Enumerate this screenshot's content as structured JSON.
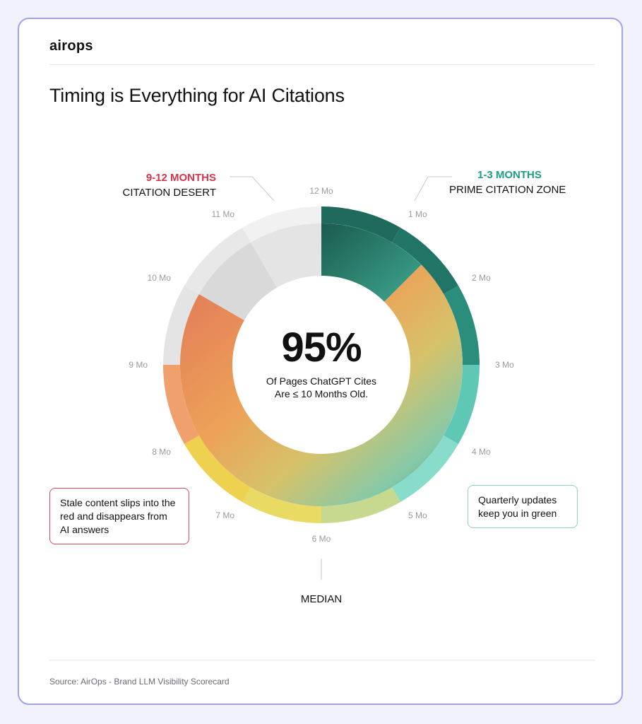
{
  "brand": {
    "logo_text": "airops"
  },
  "header": {
    "title": "Timing is Everything for AI Citations"
  },
  "footer": {
    "source": "Source: AirOps - Brand LLM Visibility Scorecard"
  },
  "center": {
    "value": "95%",
    "line1": "Of Pages ChatGPT Cites",
    "line2": "Are ≤ 10 Months Old."
  },
  "annotations": {
    "left_top": {
      "range": "9-12 MONTHS",
      "label": "CITATION DESERT",
      "color": "#d6334c"
    },
    "right_top": {
      "range": "1-3 MONTHS",
      "label": "PRIME CITATION ZONE",
      "color": "#1f9e86"
    },
    "median": "MEDIAN",
    "callout_left": "Stale content slips into the red and disappears from AI answers",
    "callout_right": "Quarterly updates keep you in green"
  },
  "chart_data": {
    "type": "pie",
    "variant": "radial month wheel",
    "title": "",
    "months": [
      "1 Mo",
      "2 Mo",
      "3 Mo",
      "4 Mo",
      "5 Mo",
      "6 Mo",
      "7 Mo",
      "8 Mo",
      "9 Mo",
      "10 Mo",
      "11 Mo",
      "12 Mo"
    ],
    "zero_label": "12 Mo",
    "tick_labels": [
      "12 Mo",
      "1 Mo",
      "2 Mo",
      "3 Mo",
      "4 Mo",
      "5 Mo",
      "6 Mo",
      "7 Mo",
      "8 Mo",
      "9 Mo",
      "10 Mo",
      "11 Mo"
    ],
    "cited_share_pct": 95,
    "cited_max_month": 10,
    "median_month": 6,
    "colors": {
      "month_1": "#1f6a5b",
      "month_2": "#217566",
      "month_3": "#2b8e7c",
      "month_4": "#5ec8b5",
      "month_5": "#88ddca",
      "month_6": "#c7d98e",
      "month_7": "#e9da63",
      "month_8": "#eed24f",
      "month_9": "#f0a06c",
      "month_10": "#e4e4e4",
      "month_11": "#e8e8e8",
      "month_12": "#f1f1f1"
    }
  }
}
